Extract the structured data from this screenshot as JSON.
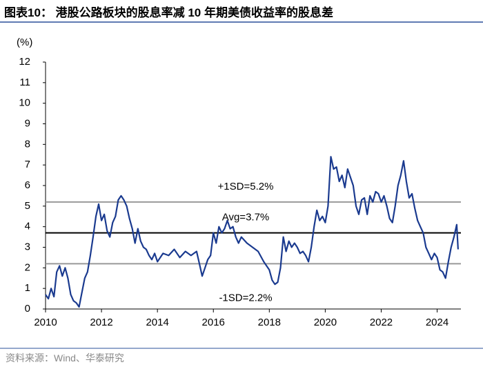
{
  "chart_data": {
    "type": "line",
    "title": "图表10：  港股公路板块的股息率减 10 年期美债收益率的股息差",
    "y_label": "(%)",
    "source": "资料来源：Wind、华泰研究",
    "color": "#1a3a8f",
    "x": [
      2010.0,
      2010.1,
      2010.2,
      2010.3,
      2010.4,
      2010.5,
      2010.6,
      2010.7,
      2010.8,
      2010.9,
      2011.0,
      2011.1,
      2011.2,
      2011.3,
      2011.4,
      2011.5,
      2011.6,
      2011.7,
      2011.8,
      2011.9,
      2012.0,
      2012.1,
      2012.2,
      2012.3,
      2012.4,
      2012.5,
      2012.6,
      2012.7,
      2012.8,
      2012.9,
      2013.0,
      2013.1,
      2013.2,
      2013.3,
      2013.4,
      2013.5,
      2013.6,
      2013.7,
      2013.8,
      2013.9,
      2014.0,
      2014.2,
      2014.4,
      2014.6,
      2014.8,
      2015.0,
      2015.2,
      2015.4,
      2015.5,
      2015.6,
      2015.7,
      2015.8,
      2015.9,
      2016.0,
      2016.1,
      2016.2,
      2016.3,
      2016.4,
      2016.5,
      2016.6,
      2016.7,
      2016.8,
      2016.9,
      2017.0,
      2017.2,
      2017.4,
      2017.6,
      2017.8,
      2018.0,
      2018.1,
      2018.2,
      2018.3,
      2018.4,
      2018.5,
      2018.6,
      2018.7,
      2018.8,
      2018.9,
      2019.0,
      2019.1,
      2019.2,
      2019.3,
      2019.4,
      2019.5,
      2019.6,
      2019.7,
      2019.8,
      2019.9,
      2020.0,
      2020.1,
      2020.2,
      2020.3,
      2020.4,
      2020.5,
      2020.6,
      2020.7,
      2020.8,
      2020.9,
      2021.0,
      2021.1,
      2021.2,
      2021.3,
      2021.4,
      2021.5,
      2021.6,
      2021.7,
      2021.8,
      2021.9,
      2022.0,
      2022.1,
      2022.2,
      2022.3,
      2022.4,
      2022.5,
      2022.6,
      2022.7,
      2022.8,
      2022.9,
      2023.0,
      2023.1,
      2023.2,
      2023.3,
      2023.4,
      2023.5,
      2023.6,
      2023.7,
      2023.8,
      2023.9,
      2024.0,
      2024.1,
      2024.2,
      2024.3,
      2024.4,
      2024.5,
      2024.6,
      2024.7,
      2024.75
    ],
    "values": [
      0.7,
      0.5,
      1.0,
      0.6,
      1.8,
      2.1,
      1.6,
      2.0,
      1.5,
      0.7,
      0.4,
      0.3,
      0.1,
      0.8,
      1.5,
      1.8,
      2.6,
      3.5,
      4.5,
      5.1,
      4.3,
      4.6,
      3.8,
      3.5,
      4.2,
      4.5,
      5.3,
      5.5,
      5.3,
      5.0,
      4.4,
      3.9,
      3.2,
      3.9,
      3.3,
      3.0,
      2.9,
      2.6,
      2.4,
      2.7,
      2.3,
      2.7,
      2.6,
      2.9,
      2.5,
      2.8,
      2.6,
      2.8,
      2.2,
      1.6,
      2.0,
      2.4,
      2.6,
      3.7,
      3.2,
      4.0,
      3.7,
      3.9,
      4.3,
      3.9,
      4.0,
      3.5,
      3.2,
      3.5,
      3.2,
      3.0,
      2.8,
      2.3,
      1.9,
      1.4,
      1.2,
      1.3,
      2.0,
      3.5,
      2.8,
      3.3,
      3.0,
      3.2,
      3.0,
      2.7,
      2.8,
      2.6,
      2.3,
      3.0,
      4.0,
      4.8,
      4.3,
      4.5,
      4.2,
      5.0,
      7.4,
      6.8,
      6.9,
      6.2,
      6.5,
      5.9,
      6.8,
      6.4,
      6.0,
      5.0,
      4.6,
      5.3,
      5.4,
      4.6,
      5.5,
      5.2,
      5.7,
      5.6,
      5.2,
      5.5,
      5.0,
      4.4,
      4.2,
      5.0,
      6.0,
      6.5,
      7.2,
      6.2,
      5.4,
      5.6,
      4.9,
      4.3,
      4.0,
      3.7,
      3.0,
      2.7,
      2.4,
      2.7,
      2.5,
      1.9,
      1.8,
      1.5,
      2.3,
      3.0,
      3.5,
      4.1,
      2.9
    ],
    "xlim": [
      2010,
      2024.85
    ],
    "xticks": [
      2010,
      2012,
      2014,
      2016,
      2018,
      2020,
      2022,
      2024
    ],
    "ylim": [
      0,
      12
    ],
    "yticks": [
      0,
      1,
      2,
      3,
      4,
      5,
      6,
      7,
      8,
      9,
      10,
      11,
      12
    ],
    "reference_lines": [
      {
        "value": 5.2,
        "label": "+1SD=5.2%",
        "color": "#999999"
      },
      {
        "value": 3.7,
        "label": "Avg=3.7%",
        "color": "#000000"
      },
      {
        "value": 2.2,
        "label": "-1SD=2.2%",
        "color": "#999999"
      }
    ]
  }
}
